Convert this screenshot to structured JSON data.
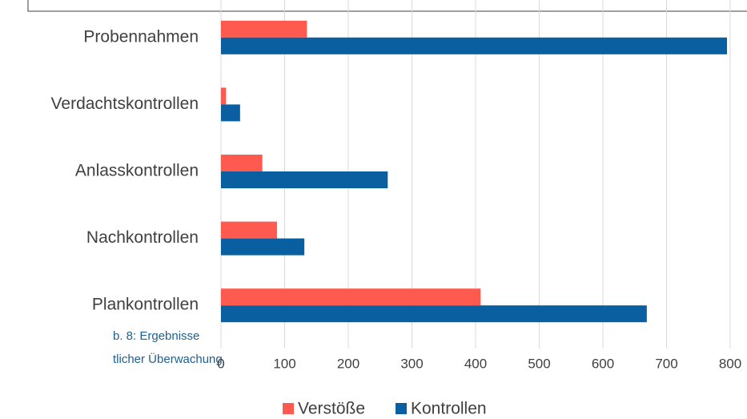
{
  "chart_data": {
    "type": "bar",
    "orientation": "horizontal",
    "categories": [
      "Probennahmen",
      "Verdachtskontrollen",
      "Anlasskontrollen",
      "Nachkontrollen",
      "Plankontrollen"
    ],
    "series": [
      {
        "name": "Verstöße",
        "color": "#ff5a50",
        "values": [
          135,
          8,
          65,
          88,
          408
        ]
      },
      {
        "name": "Kontrollen",
        "color": "#0a5fa0",
        "values": [
          795,
          30,
          262,
          131,
          669
        ]
      }
    ],
    "xlim": [
      0,
      800
    ],
    "xticks": [
      0,
      100,
      200,
      300,
      400,
      500,
      600,
      700,
      800
    ],
    "grid": true,
    "legend": "bottom",
    "caption": [
      "b. 8: Ergebnisse",
      "tlicher Überwachung"
    ]
  }
}
